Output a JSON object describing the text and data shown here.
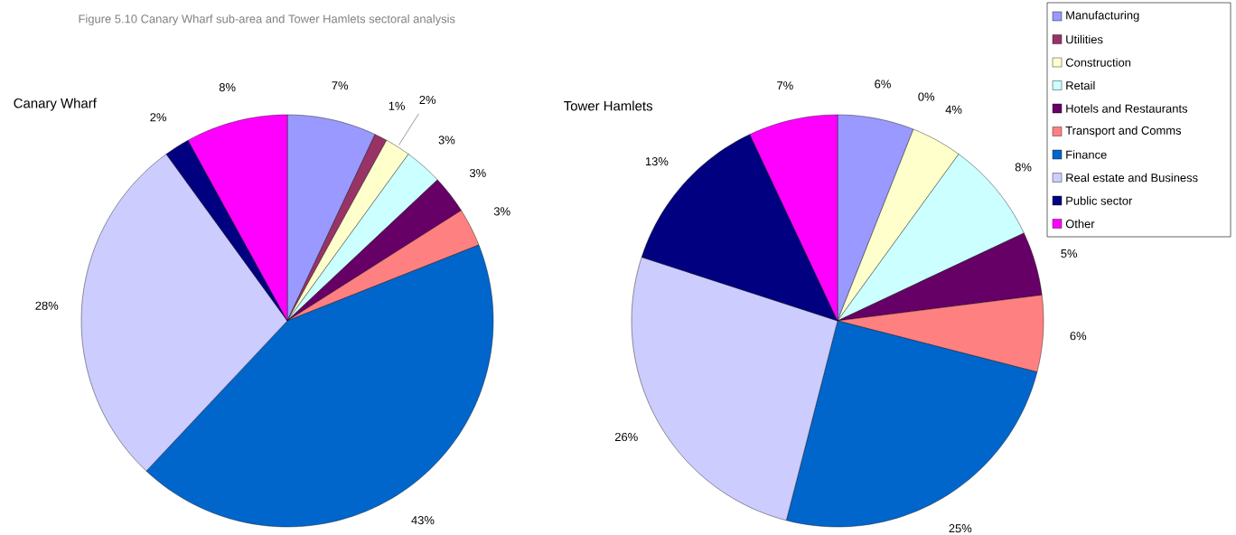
{
  "chart_data": [
    {
      "type": "pie",
      "title": "Canary Wharf",
      "annotations": [
        "Figure 5.10  Canary Wharf sub-area and Tower Hamlets sectoral analysis"
      ],
      "categories": [
        null,
        null,
        null,
        null,
        null,
        null,
        null,
        null,
        null,
        null
      ],
      "values": [
        7,
        1,
        2,
        3,
        3,
        3,
        43,
        28,
        2,
        8
      ],
      "value_labels": [
        "7%",
        "1%",
        "2%",
        "3%",
        "3%",
        "3%",
        "43%",
        "28%",
        "2%",
        "8%"
      ],
      "colors": [
        "#9999ff",
        "#993366",
        "#ffffcc",
        "#ccffff",
        "#660066",
        "#ff8080",
        "#0066cc",
        "#ccccff",
        "#000080",
        "#ff00ff"
      ]
    },
    {
      "type": "pie",
      "title": "Tower Hamlets",
      "legend": "top right",
      "categories": [
        "Manufacturing",
        "Utilities",
        "Construction",
        "Retail",
        "Hotels and Restaurants",
        "Transport and Comms",
        "Finance",
        "Real estate and Business",
        "Public sector",
        "Other"
      ],
      "values": [
        6,
        0,
        4,
        8,
        5,
        6,
        25,
        26,
        13,
        7
      ],
      "value_labels": [
        "6%",
        "0%",
        "4%",
        "8%",
        "5%",
        "6%",
        "25%",
        "26%",
        "13%",
        "7%"
      ],
      "colors": [
        "#9999ff",
        "#993366",
        "#ffffcc",
        "#ccffff",
        "#660066",
        "#ff8080",
        "#0066cc",
        "#ccccff",
        "#000080",
        "#ff00ff"
      ]
    }
  ]
}
